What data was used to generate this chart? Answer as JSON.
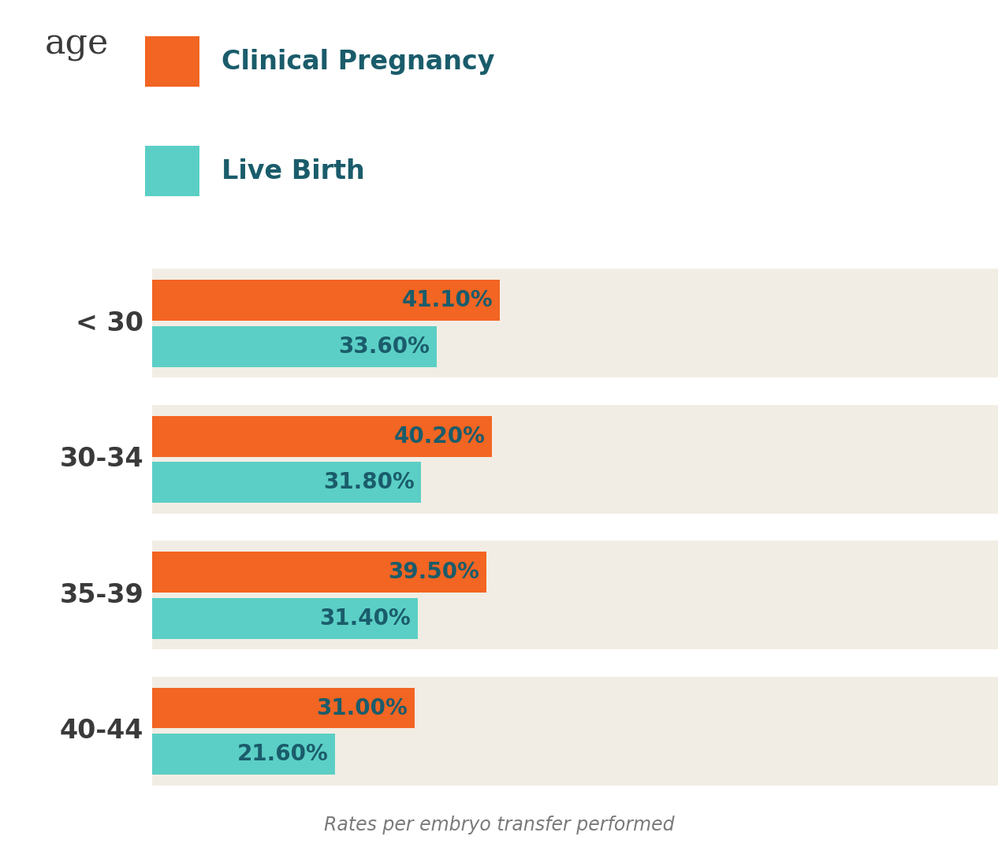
{
  "categories": [
    "< 30",
    "30-34",
    "35-39",
    "40-44"
  ],
  "clinical_pregnancy": [
    41.1,
    40.2,
    39.5,
    31.0
  ],
  "live_birth": [
    33.6,
    31.8,
    31.4,
    21.6
  ],
  "clinical_pregnancy_color": "#F26522",
  "live_birth_color": "#5BCFC5",
  "label_color": "#1A5C6B",
  "background_color": "#FFFFFF",
  "panel_color": "#F2EDE4",
  "category_label_color": "#3A3A3A",
  "legend_label_color": "#1A5C6B",
  "age_label_color": "#3A3A3A",
  "footnote_color": "#7A7A7A",
  "title_text": "age",
  "legend_cp": "Clinical Pregnancy",
  "legend_lb": "Live Birth",
  "footnote": "Rates per embryo transfer performed",
  "title_fontsize": 32,
  "legend_fontsize": 24,
  "category_fontsize": 24,
  "bar_label_fontsize": 20,
  "footnote_fontsize": 17
}
